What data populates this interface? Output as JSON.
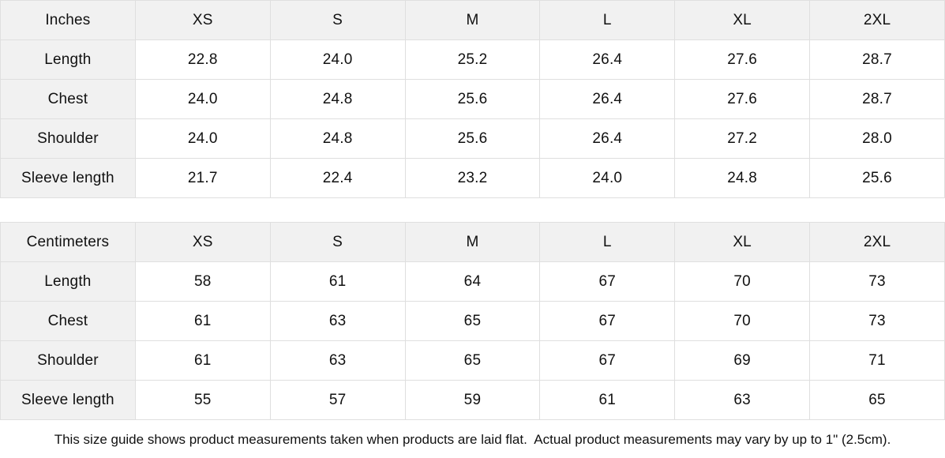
{
  "tables": [
    {
      "unit_label": "Inches",
      "size_headers": [
        "XS",
        "S",
        "M",
        "L",
        "XL",
        "2XL"
      ],
      "rows": [
        {
          "label": "Length",
          "values": [
            "22.8",
            "24.0",
            "25.2",
            "26.4",
            "27.6",
            "28.7"
          ]
        },
        {
          "label": "Chest",
          "values": [
            "24.0",
            "24.8",
            "25.6",
            "26.4",
            "27.6",
            "28.7"
          ]
        },
        {
          "label": "Shoulder",
          "values": [
            "24.0",
            "24.8",
            "25.6",
            "26.4",
            "27.2",
            "28.0"
          ]
        },
        {
          "label": "Sleeve length",
          "values": [
            "21.7",
            "22.4",
            "23.2",
            "24.0",
            "24.8",
            "25.6"
          ]
        }
      ]
    },
    {
      "unit_label": "Centimeters",
      "size_headers": [
        "XS",
        "S",
        "M",
        "L",
        "XL",
        "2XL"
      ],
      "rows": [
        {
          "label": "Length",
          "values": [
            "58",
            "61",
            "64",
            "67",
            "70",
            "73"
          ]
        },
        {
          "label": "Chest",
          "values": [
            "61",
            "63",
            "65",
            "67",
            "70",
            "73"
          ]
        },
        {
          "label": "Shoulder",
          "values": [
            "61",
            "63",
            "65",
            "67",
            "69",
            "71"
          ]
        },
        {
          "label": "Sleeve length",
          "values": [
            "55",
            "57",
            "59",
            "61",
            "63",
            "65"
          ]
        }
      ]
    }
  ],
  "footer_note": "This size guide shows product measurements taken when products are laid flat.  Actual product measurements may vary by up to 1\" (2.5cm).",
  "colors": {
    "header_bg": "#f1f1f1",
    "border": "#dfdfdf",
    "text": "#111111",
    "background": "#ffffff"
  }
}
